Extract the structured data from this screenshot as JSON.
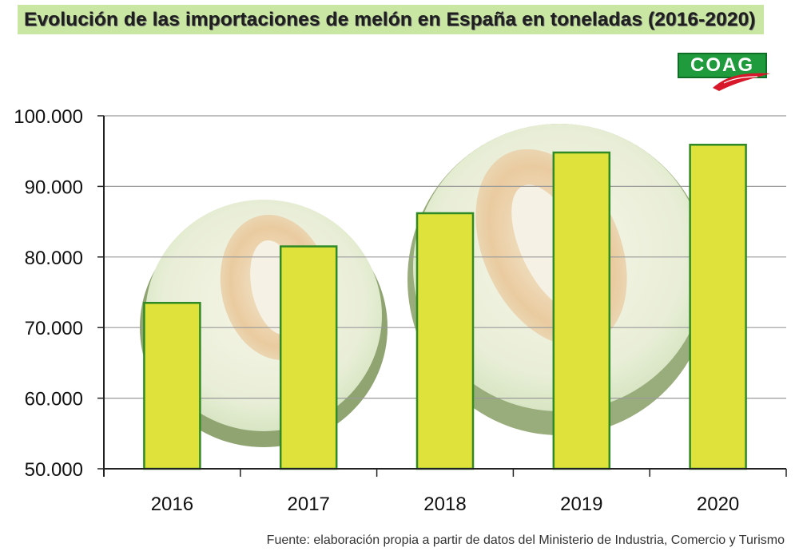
{
  "header": {
    "title": "Evolución de las importaciones de melón en España en toneladas (2016-2020)"
  },
  "logo": {
    "text": "COAG"
  },
  "footer": {
    "source": "Fuente: elaboración propia a partir de datos del Ministerio de Industria, Comercio y Turismo"
  },
  "colors": {
    "title_background": "#c9e7a2",
    "bar_fill": "#dfe23b",
    "bar_stroke": "#2f8a25",
    "logo_green": "#1f9a3d",
    "logo_red": "#d8182a"
  },
  "chart_data": {
    "type": "bar",
    "categories": [
      "2016",
      "2017",
      "2018",
      "2019",
      "2020"
    ],
    "values": [
      73500,
      81500,
      86200,
      94800,
      95900
    ],
    "ylim": [
      50000,
      100000
    ],
    "yticks": [
      50000,
      60000,
      70000,
      80000,
      90000,
      100000
    ],
    "ytick_labels": [
      "50.000",
      "60.000",
      "70.000",
      "80.000",
      "90.000",
      "100.000"
    ],
    "grid": true,
    "legend": false,
    "xlabel": "",
    "ylabel": ""
  }
}
